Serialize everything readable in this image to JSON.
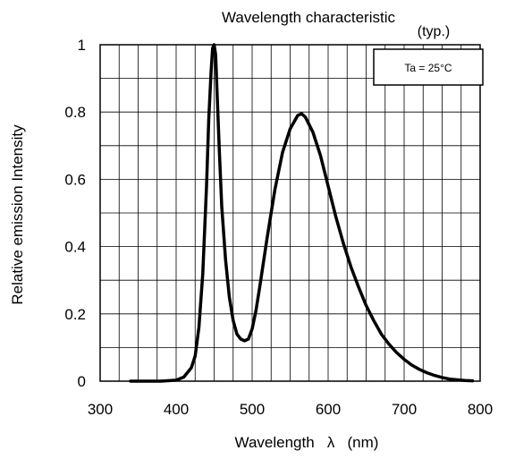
{
  "chart_data": {
    "type": "line",
    "title": "Wavelength characteristic",
    "subtitle": "(typ.)",
    "xlabel": "Wavelength   λ   (nm)",
    "ylabel": "Relative emission Intensity",
    "annotation": "Ta = 25°C",
    "xlim": [
      300,
      800
    ],
    "ylim": [
      0,
      1
    ],
    "x_ticks": [
      "300",
      "400",
      "500",
      "600",
      "700",
      "800"
    ],
    "y_ticks": [
      "0",
      "0.2",
      "0.4",
      "0.6",
      "0.8",
      "1"
    ],
    "grid": true,
    "series": [
      {
        "color": "#000000",
        "x": [
          340,
          380,
          400,
          410,
          420,
          425,
          430,
          435,
          440,
          443,
          446,
          448,
          450,
          452,
          454,
          457,
          460,
          465,
          470,
          475,
          480,
          485,
          490,
          495,
          500,
          505,
          510,
          520,
          530,
          540,
          550,
          560,
          565,
          570,
          580,
          590,
          600,
          610,
          620,
          630,
          640,
          650,
          660,
          670,
          680,
          690,
          700,
          710,
          720,
          730,
          740,
          750,
          760,
          770,
          780,
          790
        ],
        "y": [
          0.0,
          0.0,
          0.003,
          0.012,
          0.04,
          0.075,
          0.16,
          0.32,
          0.58,
          0.78,
          0.92,
          0.99,
          1.0,
          0.97,
          0.85,
          0.68,
          0.52,
          0.36,
          0.25,
          0.18,
          0.14,
          0.125,
          0.12,
          0.125,
          0.155,
          0.21,
          0.28,
          0.43,
          0.57,
          0.68,
          0.75,
          0.79,
          0.795,
          0.785,
          0.74,
          0.67,
          0.58,
          0.49,
          0.41,
          0.34,
          0.28,
          0.225,
          0.18,
          0.14,
          0.11,
          0.085,
          0.065,
          0.048,
          0.035,
          0.025,
          0.017,
          0.011,
          0.006,
          0.004,
          0.002,
          0.001
        ]
      }
    ]
  }
}
